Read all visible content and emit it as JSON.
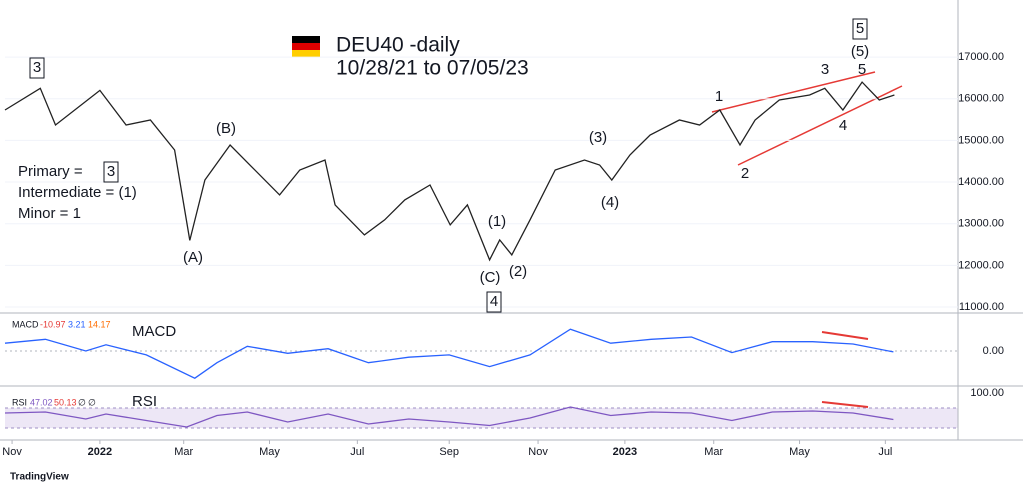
{
  "chart_data": [
    {
      "type": "line",
      "title": "DEU40 -daily",
      "subtitle": "10/28/21 to 07/05/23",
      "x": [
        0,
        3.5,
        5,
        9.4,
        12,
        14.4,
        16.8,
        18.3,
        19.8,
        22.3,
        24.3,
        27.2,
        29.2,
        31.7,
        32.7,
        35.6,
        37.6,
        39.6,
        42.1,
        44.1,
        45.8,
        48,
        49,
        50.2,
        52,
        54.5,
        57.4,
        58.9,
        60.1,
        61.9,
        63.9,
        66.8,
        68.8,
        70.8,
        72.8,
        74.3,
        76.7,
        79.7,
        81.2,
        83,
        84.9,
        86.6,
        88.1
      ],
      "series": [
        {
          "color": "#222222",
          "values": [
            15730,
            16250,
            15370,
            16200,
            15370,
            15490,
            14770,
            12600,
            14050,
            14890,
            14400,
            13690,
            14290,
            14530,
            13450,
            12730,
            13090,
            13570,
            13930,
            12970,
            13450,
            12130,
            12610,
            12250,
            13090,
            14290,
            14530,
            14410,
            14050,
            14650,
            15130,
            15490,
            15370,
            15730,
            14890,
            15490,
            15970,
            16090,
            16250,
            15730,
            16400,
            15970,
            16090
          ]
        }
      ],
      "xlim": [
        0,
        94
      ],
      "xticks": [
        {
          "value": 0.7,
          "label": "Nov"
        },
        {
          "value": 9.4,
          "label": "2022"
        },
        {
          "value": 17.7,
          "label": "Mar"
        },
        {
          "value": 26.2,
          "label": "May"
        },
        {
          "value": 34.9,
          "label": "Jul"
        },
        {
          "value": 44,
          "label": "Sep"
        },
        {
          "value": 52.8,
          "label": "Nov"
        },
        {
          "value": 61.4,
          "label": "2023"
        },
        {
          "value": 70.2,
          "label": "Mar"
        },
        {
          "value": 78.7,
          "label": "May"
        },
        {
          "value": 87.2,
          "label": "Jul"
        }
      ],
      "ylim": [
        10880,
        18130
      ],
      "yticks": [
        {
          "value": 11000,
          "label": "11000.00"
        },
        {
          "value": 12000,
          "label": "12000.00"
        },
        {
          "value": 13000,
          "label": "13000.00"
        },
        {
          "value": 14000,
          "label": "14000.00"
        },
        {
          "value": 15000,
          "label": "15000.00"
        },
        {
          "value": 16000,
          "label": "16000.00"
        },
        {
          "value": 17000,
          "label": "17000.00"
        }
      ],
      "grid": true,
      "legend_text": [
        "Primary =",
        "3",
        "Intermediate = (1)",
        "Minor = 1"
      ],
      "wave_labels": [
        "3",
        "(B)",
        "(A)",
        "(1)",
        "(C)",
        "(2)",
        "4",
        "(3)",
        "(4)",
        "1",
        "2",
        "3",
        "4",
        "5",
        "(5)",
        "5"
      ]
    },
    {
      "type": "line",
      "label": "MACD",
      "header": "MACD",
      "header_values": [
        "-10.97",
        "3.21",
        "14.17"
      ],
      "x": [
        0,
        4,
        8,
        10,
        14,
        18.8,
        21,
        24,
        28,
        32,
        36,
        40,
        44,
        48,
        52,
        56,
        60,
        64,
        68,
        72,
        76,
        80,
        84,
        88
      ],
      "series": [
        {
          "color": "#2962ff",
          "values": [
            100,
            150,
            0,
            80,
            -50,
            -350,
            -150,
            60,
            -30,
            30,
            -150,
            -80,
            -50,
            -200,
            -50,
            280,
            100,
            150,
            180,
            -20,
            120,
            120,
            90,
            -11
          ]
        }
      ],
      "xlim": [
        0,
        94
      ],
      "ylim": [
        -450,
        450
      ],
      "yticks": [
        {
          "value": 0,
          "label": "0.00"
        }
      ]
    },
    {
      "type": "line",
      "label": "RSI",
      "header": "RSI",
      "header_values": [
        "47.02",
        "50.13",
        "∅",
        "∅"
      ],
      "x": [
        0,
        4,
        8,
        10,
        14,
        18,
        21,
        24,
        28,
        32,
        36,
        40,
        44,
        48,
        52,
        56,
        60,
        64,
        68,
        72,
        76,
        80,
        84,
        88
      ],
      "series": [
        {
          "color": "#7e57c2",
          "values": [
            60,
            62,
            48,
            58,
            45,
            32,
            55,
            62,
            42,
            58,
            38,
            48,
            42,
            35,
            50,
            72,
            55,
            62,
            60,
            45,
            62,
            64,
            60,
            47
          ]
        }
      ],
      "xlim": [
        0,
        94
      ],
      "ylim": [
        0,
        100
      ],
      "yticks": [
        {
          "value": 100,
          "label": "100.00"
        }
      ]
    },
    "TradingView"
  ]
}
